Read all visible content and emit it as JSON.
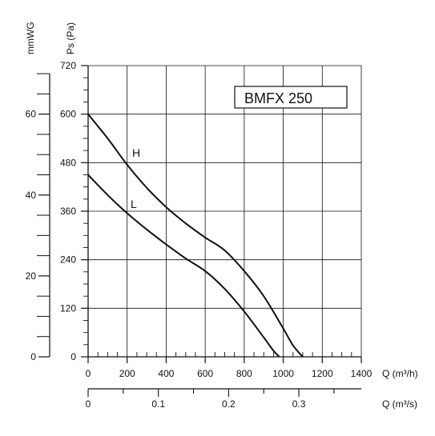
{
  "chart_data": {
    "type": "line",
    "title": "BMFX 250",
    "xlabel": "Q (m³/h)",
    "ylabel": "Ps (Pa)",
    "xlim": [
      0,
      1400
    ],
    "ylim": [
      0,
      720
    ],
    "x_ticks": [
      0,
      200,
      400,
      600,
      800,
      1000,
      1200,
      1400
    ],
    "y_ticks": [
      0,
      120,
      240,
      360,
      480,
      600,
      720
    ],
    "grid": true,
    "secondary_y": {
      "label": "mmWG",
      "ticks": [
        0,
        20,
        40,
        60
      ],
      "max": 72
    },
    "secondary_x": {
      "label": "Q (m³/s)",
      "ticks": [
        0,
        0.1,
        0.2,
        0.3
      ],
      "tick_labels": [
        "0",
        "0.1",
        "0.2",
        "0.3"
      ],
      "max": 0.3889
    },
    "series": [
      {
        "name": "H",
        "x": [
          0,
          100,
          200,
          300,
          400,
          500,
          600,
          700,
          800,
          900,
          1000,
          1050,
          1100
        ],
        "y": [
          600,
          540,
          475,
          418,
          370,
          330,
          295,
          263,
          212,
          150,
          70,
          28,
          0
        ]
      },
      {
        "name": "L",
        "x": [
          0,
          100,
          200,
          300,
          400,
          500,
          600,
          700,
          800,
          900,
          950,
          980
        ],
        "y": [
          450,
          400,
          355,
          315,
          278,
          243,
          212,
          168,
          112,
          48,
          15,
          0
        ]
      }
    ]
  }
}
